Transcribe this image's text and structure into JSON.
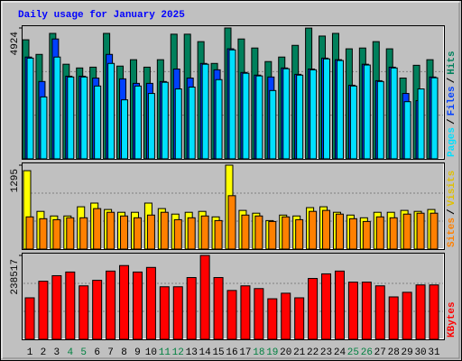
{
  "chart_data": {
    "type": "bar",
    "title": "Daily usage for January 2025",
    "title_color": "#0000ff",
    "categories": [
      "1",
      "2",
      "3",
      "4",
      "5",
      "6",
      "7",
      "8",
      "9",
      "10",
      "11",
      "12",
      "13",
      "14",
      "15",
      "16",
      "17",
      "18",
      "19",
      "20",
      "21",
      "22",
      "23",
      "24",
      "25",
      "26",
      "27",
      "28",
      "29",
      "30",
      "31"
    ],
    "category_colors": [
      "#000000",
      "#000000",
      "#000000",
      "#008040",
      "#008040",
      "#000000",
      "#000000",
      "#000000",
      "#000000",
      "#000000",
      "#008040",
      "#008040",
      "#000000",
      "#000000",
      "#000000",
      "#000000",
      "#000000",
      "#008040",
      "#008040",
      "#000000",
      "#000000",
      "#000000",
      "#000000",
      "#000000",
      "#008040",
      "#008040",
      "#000000",
      "#000000",
      "#000000",
      "#000000",
      "#000000"
    ],
    "legend_separator": "/",
    "panels": [
      {
        "ylim": [
          0,
          4924
        ],
        "yticks": [
          4924
        ],
        "series": [
          {
            "name": "Hits",
            "color": "#00805c",
            "values": [
              4480,
              3930,
              4720,
              3560,
              3420,
              3450,
              4720,
              3490,
              3730,
              3450,
              3730,
              4690,
              4690,
              4410,
              3590,
              4924,
              4510,
              4170,
              3660,
              3830,
              4270,
              4920,
              4620,
              4720,
              4140,
              4170,
              4410,
              4140,
              3040,
              3520,
              3730
            ]
          },
          {
            "name": "Files",
            "color": "#0040ff",
            "values": [
              3830,
              2910,
              4510,
              3110,
              3110,
              3040,
              3930,
              3010,
              2840,
              2840,
              2910,
              3380,
              3040,
              3590,
              3350,
              4140,
              3250,
              3150,
              3080,
              3420,
              3180,
              3380,
              3790,
              3730,
              2770,
              3560,
              2940,
              3450,
              2460,
              2190,
              3080
            ]
          },
          {
            "name": "Pages",
            "color": "#00e0ff",
            "values": [
              3790,
              2330,
              3830,
              3080,
              3080,
              2740,
              3590,
              2220,
              2740,
              2460,
              2880,
              2630,
              2700,
              3560,
              2980,
              4100,
              3220,
              3120,
              2570,
              3390,
              3150,
              3350,
              3760,
              3700,
              2740,
              3530,
              2910,
              3420,
              2150,
              2630,
              3050
            ]
          }
        ]
      },
      {
        "ylim": [
          0,
          1295
        ],
        "yticks": [
          1295
        ],
        "series": [
          {
            "name": "Visits",
            "color": "#ffff00",
            "values": [
              1210,
              582,
              511,
              511,
              653,
              710,
              611,
              568,
              568,
              710,
              625,
              540,
              568,
              582,
              497,
              1295,
              597,
              554,
              440,
              525,
              511,
              640,
              653,
              568,
              525,
              483,
              568,
              568,
              597,
              582,
              611
            ]
          },
          {
            "name": "Sites",
            "color": "#ff8000",
            "values": [
              497,
              469,
              454,
              483,
              483,
              625,
              568,
              511,
              483,
              525,
              568,
              454,
              483,
              511,
              440,
              824,
              525,
              511,
              426,
              497,
              454,
              582,
              597,
              540,
              469,
              426,
              497,
              483,
              540,
              554,
              554
            ]
          }
        ]
      },
      {
        "ylim": [
          0,
          238517
        ],
        "yticks": [
          238517
        ],
        "series": [
          {
            "name": "KBytes",
            "color": "#ff0000",
            "values": [
              118000,
              165100,
              180900,
              191300,
              152000,
              167700,
              194000,
              209700,
              191300,
              204400,
              149400,
              149400,
              175600,
              238517,
              175600,
              138900,
              152000,
              144200,
              115300,
              131100,
              118000,
              173000,
              186100,
              194000,
              162500,
              162500,
              152000,
              120600,
              133700,
              154600,
              154600
            ]
          }
        ]
      }
    ]
  }
}
